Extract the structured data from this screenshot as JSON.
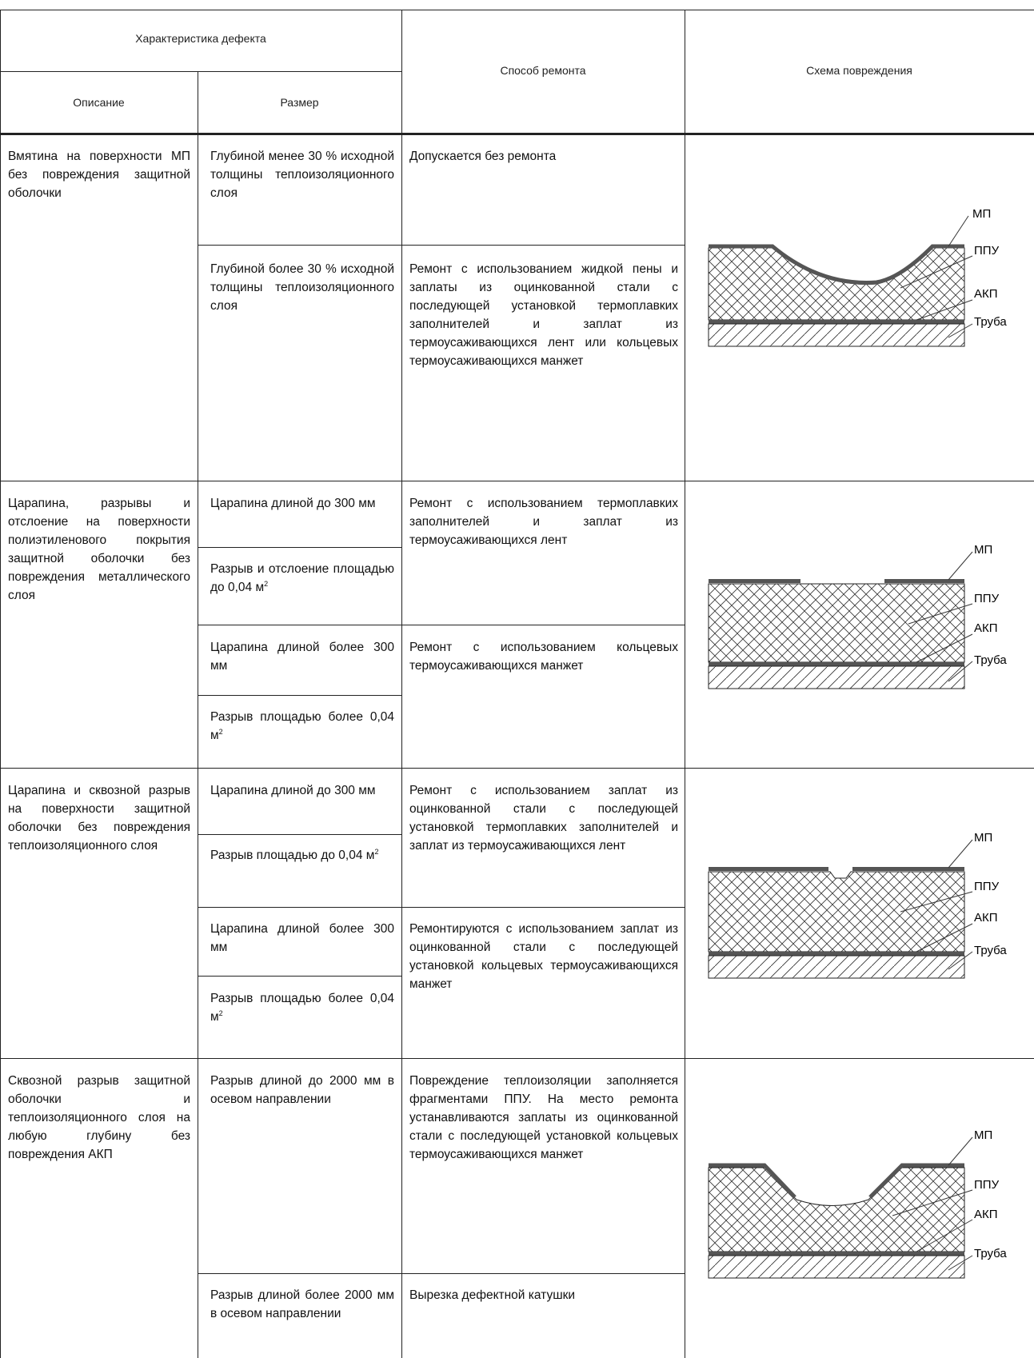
{
  "header": {
    "defect_char": "Характеристика дефекта",
    "description": "Описание",
    "size": "Размер",
    "repair_method": "Способ ремонта",
    "damage_scheme": "Схема повреждения"
  },
  "groups": [
    {
      "description": "Вмятина на поверхности МП без повреждения защитной оболочки",
      "rows": [
        {
          "size": "Глубиной менее 30 % исходной толщины теплоизоляционного слоя"
        },
        {
          "size": "Глубиной более 30 % исходной толщины теплоизоляционного слоя"
        }
      ],
      "methods": [
        "Допускается без ремонта",
        "Ремонт с использованием жидкой пены и заплаты из оцинкованной стали с последующей установкой термоплавких заполнителей и заплат из термоусаживающихся лент или кольцевых термоусаживающихся манжет"
      ],
      "scheme_labels": [
        "МП",
        "ППУ",
        "АКП",
        "Труба"
      ]
    },
    {
      "description": "Царапина, разрывы и отслоение на поверхности полиэтиленового покрытия защитной оболочки без повреждения металлического слоя",
      "rows": [
        {
          "size": "Царапина длиной до 300 мм"
        },
        {
          "size_prefix": "Разрыв и отслоение площадью до 0,04 м",
          "size_sup": "2"
        },
        {
          "size": "Царапина длиной более 300 мм"
        },
        {
          "size_prefix": "Разрыв площадью более 0,04 м",
          "size_sup": "2"
        }
      ],
      "methods": [
        "Ремонт с использованием термоплавких заполнителей и заплат из термоусаживающихся лент",
        "Ремонт с использованием кольцевых термоусаживающихся манжет"
      ],
      "scheme_labels": [
        "МП",
        "ППУ",
        "АКП",
        "Труба"
      ]
    },
    {
      "description": "Царапина и сквозной разрыв на поверхности защитной оболочки без повреждения теплоизоляционного слоя",
      "rows": [
        {
          "size": "Царапина длиной до 300 мм"
        },
        {
          "size_prefix": "Разрыв площадью до 0,04 м",
          "size_sup": "2"
        },
        {
          "size": "Царапина длиной более 300 мм"
        },
        {
          "size_prefix": "Разрыв площадью более 0,04 м",
          "size_sup": "2"
        }
      ],
      "methods": [
        "Ремонт с использованием заплат из оцинкованной стали с последующей установкой термоплавких заполнителей и заплат из термоусаживающихся лент",
        "Ремонтируются с использованием заплат из оцинкованной стали с последующей установкой кольцевых термоусаживающихся манжет"
      ],
      "scheme_labels": [
        "МП",
        "ППУ",
        "АКП",
        "Труба"
      ]
    },
    {
      "description": "Сквозной разрыв защитной оболочки и теплоизоляционного слоя на любую глубину без повреждения АКП",
      "rows": [
        {
          "size": "Разрыв длиной до 2000 мм в осевом направлении"
        },
        {
          "size": "Разрыв длиной более 2000 мм в осевом направлении"
        }
      ],
      "methods": [
        "Повреждение теплоизоляции заполняется фрагментами ППУ. На место ремонта устанавливаются заплаты из оцинкованной стали с последующей установкой кольцевых термоусаживающихся манжет",
        "Вырезка дефектной катушки"
      ],
      "scheme_labels": [
        "МП",
        "ППУ",
        "АКП",
        "Труба"
      ]
    }
  ]
}
